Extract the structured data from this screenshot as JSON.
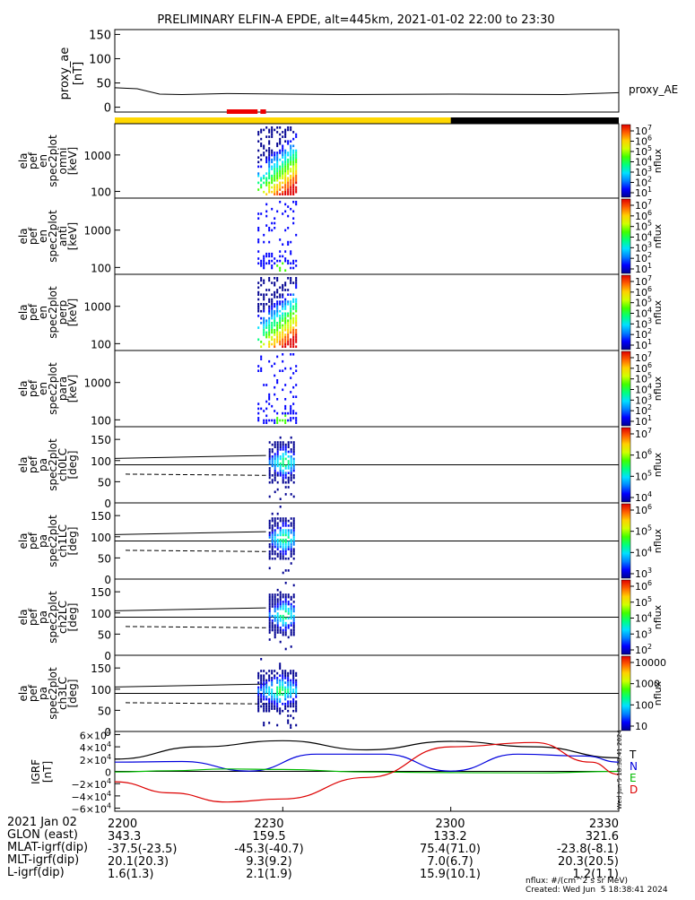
{
  "title": "PRELIMINARY ELFIN-A EPDE, alt=445km, 2021-01-02 22:00 to 23:30",
  "colors": {
    "yellow": "#ffd700",
    "black": "#000000",
    "red": "#ee0000",
    "bx": "#0000dd",
    "by": "#00bb00",
    "bz": "#dd0000",
    "bt": "#000000"
  },
  "chart_data": [
    {
      "type": "line",
      "panel": "proxy_ae",
      "ylabel": [
        "proxy_ae",
        "[nT]"
      ],
      "yticks": [
        "150",
        "100",
        "50",
        "0"
      ],
      "ylim": [
        -10,
        160
      ],
      "series": [
        {
          "name": "proxy_AE",
          "x": [
            0,
            4,
            8,
            12,
            20,
            40,
            60,
            80,
            90
          ],
          "y": [
            40,
            38,
            27,
            26,
            28,
            26,
            27,
            26,
            30
          ]
        }
      ],
      "xlim": [
        0,
        90
      ]
    },
    {
      "type": "heatmap",
      "panel": "omni",
      "ylabel": [
        "ela",
        "pef",
        "en",
        "spec2plot",
        "omni",
        "[keV]"
      ],
      "yticks": [
        "1000",
        "100"
      ],
      "colorbar": {
        "label": "nflux",
        "ticks": [
          "10^7",
          "10^6",
          "10^5",
          "10^4",
          "10^3",
          "10^2",
          "10^1"
        ]
      },
      "active_x": [
        25.5,
        32.5
      ]
    },
    {
      "type": "heatmap",
      "panel": "anti",
      "ylabel": [
        "ela",
        "pef",
        "en",
        "spec2plot",
        "anti",
        "[keV]"
      ],
      "yticks": [
        "1000",
        "100"
      ],
      "colorbar": {
        "label": "nflux",
        "ticks": [
          "10^7",
          "10^6",
          "10^5",
          "10^4",
          "10^3",
          "10^2",
          "10^1"
        ]
      },
      "active_x": [
        25.5,
        32.5
      ]
    },
    {
      "type": "heatmap",
      "panel": "perp",
      "ylabel": [
        "ela",
        "pef",
        "en",
        "spec2plot",
        "perp",
        "[keV]"
      ],
      "yticks": [
        "1000",
        "100"
      ],
      "colorbar": {
        "label": "nflux",
        "ticks": [
          "10^7",
          "10^6",
          "10^5",
          "10^4",
          "10^3",
          "10^2",
          "10^1"
        ]
      },
      "active_x": [
        25.5,
        32.5
      ]
    },
    {
      "type": "heatmap",
      "panel": "para",
      "ylabel": [
        "ela",
        "pef",
        "en",
        "spec2plot",
        "para",
        "[keV]"
      ],
      "yticks": [
        "1000",
        "100"
      ],
      "colorbar": {
        "label": "nflux",
        "ticks": [
          "10^7",
          "10^6",
          "10^5",
          "10^4",
          "10^3",
          "10^2",
          "10^1"
        ]
      },
      "active_x": [
        25.5,
        32.5
      ]
    },
    {
      "type": "heatmap",
      "panel": "ch0LC",
      "ylabel": [
        "ela",
        "pef",
        "pa",
        "spec2plot",
        "ch0LC",
        "[deg]"
      ],
      "yticks": [
        "150",
        "100",
        "50",
        "0"
      ],
      "colorbar": {
        "label": "nflux",
        "ticks": [
          "10^7",
          "10^6",
          "10^5",
          "10^4"
        ]
      },
      "active_x": [
        27.5,
        32.5
      ]
    },
    {
      "type": "heatmap",
      "panel": "ch1LC",
      "ylabel": [
        "ela",
        "pef",
        "pa",
        "spec2plot",
        "ch1LC",
        "[deg]"
      ],
      "yticks": [
        "150",
        "100",
        "50",
        "0"
      ],
      "colorbar": {
        "label": "nflux",
        "ticks": [
          "10^6",
          "10^5",
          "10^4",
          "10^3"
        ]
      },
      "active_x": [
        27.5,
        32.5
      ]
    },
    {
      "type": "heatmap",
      "panel": "ch2LC",
      "ylabel": [
        "ela",
        "pef",
        "pa",
        "spec2plot",
        "ch2LC",
        "[deg]"
      ],
      "yticks": [
        "150",
        "100",
        "50",
        "0"
      ],
      "colorbar": {
        "label": "nflux",
        "ticks": [
          "10^6",
          "10^5",
          "10^4",
          "10^3",
          "10^2"
        ]
      },
      "active_x": [
        27.5,
        32.5
      ]
    },
    {
      "type": "heatmap",
      "panel": "ch3LC",
      "ylabel": [
        "ela",
        "pef",
        "pa",
        "spec2plot",
        "ch3LC",
        "[deg]"
      ],
      "yticks": [
        "150",
        "100",
        "50",
        "0"
      ],
      "colorbar": {
        "label": "nflux",
        "ticks": [
          "10000",
          "1000",
          "100",
          "10"
        ]
      },
      "active_x": [
        25.5,
        32.5
      ]
    },
    {
      "type": "line",
      "panel": "IGRF",
      "ylabel": [
        "IGRF",
        "[nT]"
      ],
      "yticks": [
        "6×10^4",
        "4×10^4",
        "2×10^4",
        "0",
        "−2×10^4",
        "−4×10^4",
        "−6×10^4"
      ],
      "ylim": [
        -65000,
        65000
      ],
      "legend": [
        "T",
        "N",
        "E",
        "D"
      ],
      "series": [
        {
          "name": "T",
          "x": [
            0,
            15,
            30,
            45,
            60,
            75,
            90
          ],
          "y": [
            20000,
            40000,
            50000,
            35000,
            49000,
            40000,
            22000
          ]
        },
        {
          "name": "N",
          "x": [
            0,
            12,
            24,
            36,
            48,
            60,
            72,
            84,
            90
          ],
          "y": [
            15000,
            16000,
            500,
            28000,
            28000,
            500,
            28000,
            25000,
            15000
          ]
        },
        {
          "name": "E",
          "x": [
            0,
            10,
            20,
            30,
            45,
            60,
            75,
            90
          ],
          "y": [
            -1000,
            1000,
            4000,
            3000,
            -1000,
            -2000,
            -2500,
            0
          ]
        },
        {
          "name": "D",
          "x": [
            0,
            10,
            20,
            30,
            45,
            60,
            75,
            85,
            90
          ],
          "y": [
            -17000,
            -35000,
            -50000,
            -45000,
            -10000,
            40000,
            47000,
            15000,
            -5000
          ]
        }
      ],
      "xlim": [
        0,
        90
      ]
    }
  ],
  "segments": {
    "mode_bar": [
      {
        "from": 0,
        "to": 60,
        "color": "yellow"
      },
      {
        "from": 60,
        "to": 90,
        "color": "black"
      }
    ],
    "science_bar": [
      {
        "from": 20,
        "to": 25.5
      },
      {
        "from": 26,
        "to": 27
      }
    ]
  },
  "footer": {
    "rows": [
      {
        "label": "2021 Jan 02",
        "values": [
          "2200",
          "2230",
          "2300",
          "2330"
        ]
      },
      {
        "label": "GLON (east)",
        "values": [
          "343.3",
          "159.5",
          "133.2",
          "321.6"
        ]
      },
      {
        "label": "MLAT-igrf(dip)",
        "values": [
          "-37.5(-23.5)",
          "-45.3(-40.7)",
          "75.4(71.0)",
          "-23.8(-8.1)"
        ]
      },
      {
        "label": "MLT-igrf(dip)",
        "values": [
          "20.1(20.3)",
          "9.3(9.2)",
          "7.0(6.7)",
          "20.3(20.5)"
        ]
      },
      {
        "label": "L-igrf(dip)",
        "values": [
          "1.6(1.3)",
          "2.1(1.9)",
          "15.9(10.1)",
          "1.2(1.1)"
        ]
      }
    ],
    "units": "nflux: #/(cm^2 s sr MeV)",
    "created": "Created: Wed Jun  5 18:38:41 2024",
    "vertical_stamp": "Wed Jun  5 18:38:41 2024"
  }
}
